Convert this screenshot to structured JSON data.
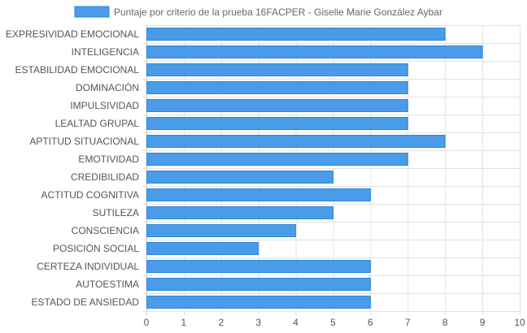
{
  "chart_data": {
    "type": "bar",
    "orientation": "horizontal",
    "categories": [
      "EXPRESIVIDAD EMOCIONAL",
      "INTELIGENCIA",
      "ESTABILIDAD EMOCIONAL",
      "DOMINACIÓN",
      "IMPULSIVIDAD",
      "LEALTAD GRUPAL",
      "APTITUD SITUACIONAL",
      "EMOTIVIDAD",
      "CREDIBILIDAD",
      "ACTITUD COGNITIVA",
      "SUTILEZA",
      "CONSCIENCIA",
      "POSICIÓN SOCIAL",
      "CERTEZA INDIVIDUAL",
      "AUTOESTIMA",
      "ESTADO DE ANSIEDAD"
    ],
    "series": [
      {
        "name": "Puntaje por criterio de la prueba 16FACPER - Giselle Marie González Aybar",
        "values": [
          8,
          9,
          7,
          7,
          7,
          7,
          8,
          7,
          5,
          6,
          5,
          4,
          3,
          6,
          6,
          6
        ]
      }
    ],
    "xlim": [
      0,
      10
    ],
    "xticks": [
      "0",
      "1",
      "2",
      "3",
      "4",
      "5",
      "6",
      "7",
      "8",
      "9",
      "10"
    ],
    "grid": true,
    "legend": "top-center",
    "colors": {
      "bar_fill": "#4a9be8",
      "bar_border": "#2f86dd",
      "grid": "#e2e2e2"
    }
  }
}
